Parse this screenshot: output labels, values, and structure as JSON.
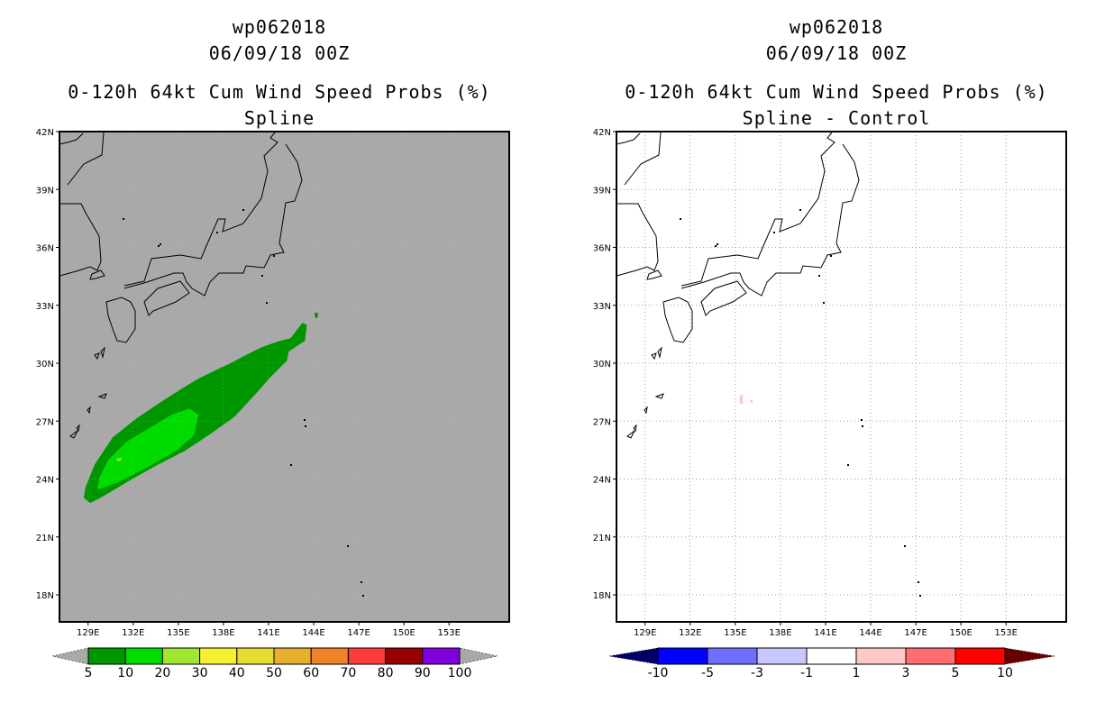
{
  "chart_data": [
    {
      "type": "map",
      "title_lines": [
        "wp062018",
        "06/09/18 00Z",
        "0-120h 64kt Cum Wind Speed Probs (%)",
        "Spline"
      ],
      "lon_range": [
        127.1,
        157.0
      ],
      "lat_range": [
        16.6,
        42.0
      ],
      "lon_ticks": [
        "129E",
        "132E",
        "135E",
        "138E",
        "141E",
        "144E",
        "147E",
        "150E",
        "153E"
      ],
      "lon_tick_values": [
        129,
        132,
        135,
        138,
        141,
        144,
        147,
        150,
        153
      ],
      "lat_ticks": [
        "42N",
        "39N",
        "36N",
        "33N",
        "30N",
        "27N",
        "24N",
        "21N",
        "18N"
      ],
      "lat_tick_values": [
        42,
        39,
        36,
        33,
        30,
        27,
        24,
        21,
        18
      ],
      "background_color": "#a9a9a9",
      "contours": [
        {
          "level": "5-10",
          "color": "#009600",
          "polygons": [
            [
              [
                128.72,
                23.03
              ],
              [
                129.14,
                22.75
              ],
              [
                130.04,
                23.12
              ],
              [
                131.54,
                23.82
              ],
              [
                133.34,
                24.62
              ],
              [
                135.44,
                25.46
              ],
              [
                137.24,
                26.39
              ],
              [
                138.74,
                27.23
              ],
              [
                140.24,
                28.49
              ],
              [
                141.14,
                29.29
              ],
              [
                142.22,
                30.13
              ],
              [
                142.34,
                30.6
              ],
              [
                142.94,
                30.92
              ],
              [
                143.42,
                31.16
              ],
              [
                143.54,
                32.0
              ],
              [
                143.24,
                32.09
              ],
              [
                142.46,
                31.3
              ],
              [
                141.74,
                31.16
              ],
              [
                140.54,
                30.83
              ],
              [
                139.34,
                30.36
              ],
              [
                138.44,
                29.99
              ],
              [
                137.54,
                29.66
              ],
              [
                136.34,
                29.2
              ],
              [
                135.14,
                28.64
              ],
              [
                133.64,
                27.89
              ],
              [
                132.14,
                27.09
              ],
              [
                130.64,
                26.16
              ],
              [
                129.44,
                24.76
              ],
              [
                128.84,
                23.59
              ]
            ],
            [
              [
                144.05,
                32.62
              ],
              [
                144.3,
                32.6
              ],
              [
                144.25,
                32.35
              ],
              [
                144.1,
                32.35
              ]
            ]
          ]
        },
        {
          "level": "10-20",
          "color": "#00dc00",
          "polygons": [
            [
              [
                129.62,
                23.45
              ],
              [
                130.94,
                23.82
              ],
              [
                132.74,
                24.52
              ],
              [
                134.84,
                25.46
              ],
              [
                136.04,
                26.25
              ],
              [
                136.34,
                27.33
              ],
              [
                135.74,
                27.65
              ],
              [
                134.54,
                27.33
              ],
              [
                133.04,
                26.63
              ],
              [
                131.54,
                25.92
              ],
              [
                130.34,
                24.99
              ],
              [
                129.74,
                24.06
              ]
            ]
          ]
        },
        {
          "level": "20-30",
          "color": "#a0e632",
          "polygons": [
            [
              [
                130.9,
                25.05
              ],
              [
                131.2,
                25.1
              ],
              [
                131.2,
                24.95
              ],
              [
                130.9,
                24.95
              ]
            ]
          ]
        }
      ],
      "colorbar": {
        "labels": [
          "5",
          "10",
          "20",
          "30",
          "40",
          "50",
          "60",
          "70",
          "80",
          "90",
          "100"
        ],
        "colors": [
          "#009600",
          "#00dc00",
          "#a0e632",
          "#f5f032",
          "#e6dc32",
          "#e6af2d",
          "#f08228",
          "#fa3c3c",
          "#960000",
          "#8200dc"
        ],
        "under_color": "#a9a9a9",
        "over_color": "#a9a9a9"
      }
    },
    {
      "type": "map",
      "title_lines": [
        "wp062018",
        "06/09/18 00Z",
        "0-120h 64kt Cum Wind Speed Probs (%)",
        "Spline - Control"
      ],
      "lon_range": [
        127.1,
        157.0
      ],
      "lat_range": [
        16.6,
        42.0
      ],
      "lon_ticks": [
        "129E",
        "132E",
        "135E",
        "138E",
        "141E",
        "144E",
        "147E",
        "150E",
        "153E"
      ],
      "lon_tick_values": [
        129,
        132,
        135,
        138,
        141,
        144,
        147,
        150,
        153
      ],
      "lat_ticks": [
        "42N",
        "39N",
        "36N",
        "33N",
        "30N",
        "27N",
        "24N",
        "21N",
        "18N"
      ],
      "lat_tick_values": [
        42,
        39,
        36,
        33,
        30,
        27,
        24,
        21,
        18
      ],
      "background_color": "#ffffff",
      "contours": [
        {
          "level": "1-3",
          "color": "#ffc8c8",
          "polygons": [
            [
              [
                135.3,
                28.3
              ],
              [
                135.5,
                28.4
              ],
              [
                135.5,
                27.9
              ],
              [
                135.3,
                27.9
              ]
            ],
            [
              [
                136.0,
                28.1
              ],
              [
                136.15,
                28.1
              ],
              [
                136.15,
                27.95
              ],
              [
                136.0,
                27.95
              ]
            ]
          ]
        }
      ],
      "colorbar": {
        "labels": [
          "-10",
          "-5",
          "-3",
          "-1",
          "1",
          "3",
          "5",
          "10"
        ],
        "colors": [
          "#0000ff",
          "#6e6eff",
          "#c8c8ff",
          "#ffffff",
          "#ffc8c8",
          "#ff6e6e",
          "#ff0000"
        ],
        "under_color": "#000064",
        "over_color": "#640000"
      }
    }
  ]
}
